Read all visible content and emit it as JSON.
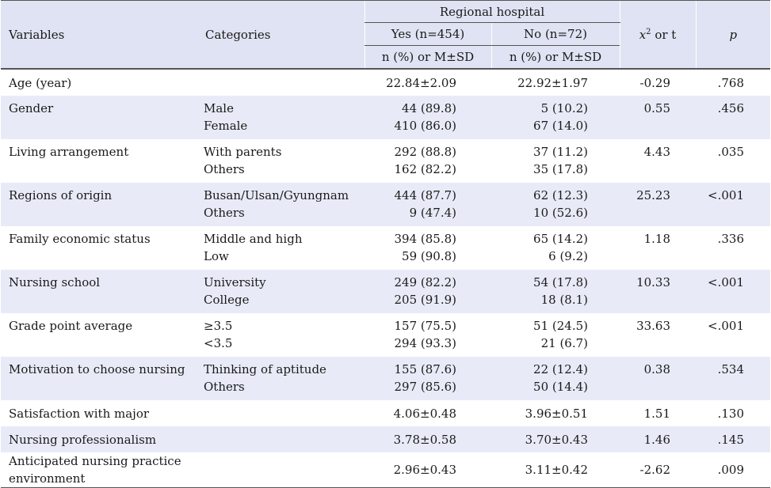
{
  "header": {
    "group_title": "Regional hospital",
    "col_variables": "Variables",
    "col_categories": "Categories",
    "col_yes": "Yes (n=454)",
    "col_no": "No (n=72)",
    "col_yes_sub": "n (%) or M±SD",
    "col_no_sub": "n (%) or M±SD",
    "col_chi_symbol": "x",
    "col_chi_sup": "2",
    "col_chi_rest": " or t",
    "col_p": "p"
  },
  "rows": [
    {
      "variable": "Age (year)",
      "categories": [],
      "yes": [
        "22.84±2.09"
      ],
      "no": [
        "22.92±1.97"
      ],
      "stat": "-0.29",
      "p": ".768"
    },
    {
      "variable": "Gender",
      "categories": [
        "Male",
        "Female"
      ],
      "yes": [
        "44 (89.8)",
        "410 (86.0)"
      ],
      "no": [
        "5 (10.2)",
        "67 (14.0)"
      ],
      "stat": "0.55",
      "p": ".456"
    },
    {
      "variable": "Living arrangement",
      "categories": [
        "With parents",
        "Others"
      ],
      "yes": [
        "292 (88.8)",
        "162 (82.2)"
      ],
      "no": [
        "37 (11.2)",
        "35 (17.8)"
      ],
      "stat": "4.43",
      "p": ".035"
    },
    {
      "variable": "Regions of origin",
      "categories": [
        "Busan/Ulsan/Gyungnam",
        "Others"
      ],
      "yes": [
        "444 (87.7)",
        "9 (47.4)"
      ],
      "no": [
        "62 (12.3)",
        "10 (52.6)"
      ],
      "stat": "25.23",
      "p": "<.001"
    },
    {
      "variable": "Family economic status",
      "categories": [
        "Middle and high",
        "Low"
      ],
      "yes": [
        "394 (85.8)",
        "59 (90.8)"
      ],
      "no": [
        "65 (14.2)",
        "6 (9.2)"
      ],
      "stat": "1.18",
      "p": ".336"
    },
    {
      "variable": "Nursing school",
      "categories": [
        "University",
        "College"
      ],
      "yes": [
        "249 (82.2)",
        "205 (91.9)"
      ],
      "no": [
        "54 (17.8)",
        "18 (8.1)"
      ],
      "stat": "10.33",
      "p": "<.001"
    },
    {
      "variable": "Grade point average",
      "categories": [
        "≥3.5",
        "<3.5"
      ],
      "yes": [
        "157 (75.5)",
        "294 (93.3)"
      ],
      "no": [
        "51 (24.5)",
        "21 (6.7)"
      ],
      "stat": "33.63",
      "p": "<.001"
    },
    {
      "variable": "Motivation to choose nursing",
      "categories": [
        "Thinking of aptitude",
        "Others"
      ],
      "yes": [
        "155 (87.6)",
        "297 (85.6)"
      ],
      "no": [
        "22 (12.4)",
        "50 (14.4)"
      ],
      "stat": "0.38",
      "p": ".534"
    },
    {
      "variable": "Satisfaction with major",
      "categories": [],
      "yes": [
        "4.06±0.48"
      ],
      "no": [
        "3.96±0.51"
      ],
      "stat": "1.51",
      "p": ".130"
    },
    {
      "variable": "Nursing professionalism",
      "categories": [],
      "yes": [
        "3.78±0.58"
      ],
      "no": [
        "3.70±0.43"
      ],
      "stat": "1.46",
      "p": ".145"
    },
    {
      "variable": "Anticipated nursing practice environment",
      "categories": [],
      "yes": [
        "2.96±0.43"
      ],
      "no": [
        "3.11±0.42"
      ],
      "stat": "-2.62",
      "p": ".009"
    }
  ]
}
